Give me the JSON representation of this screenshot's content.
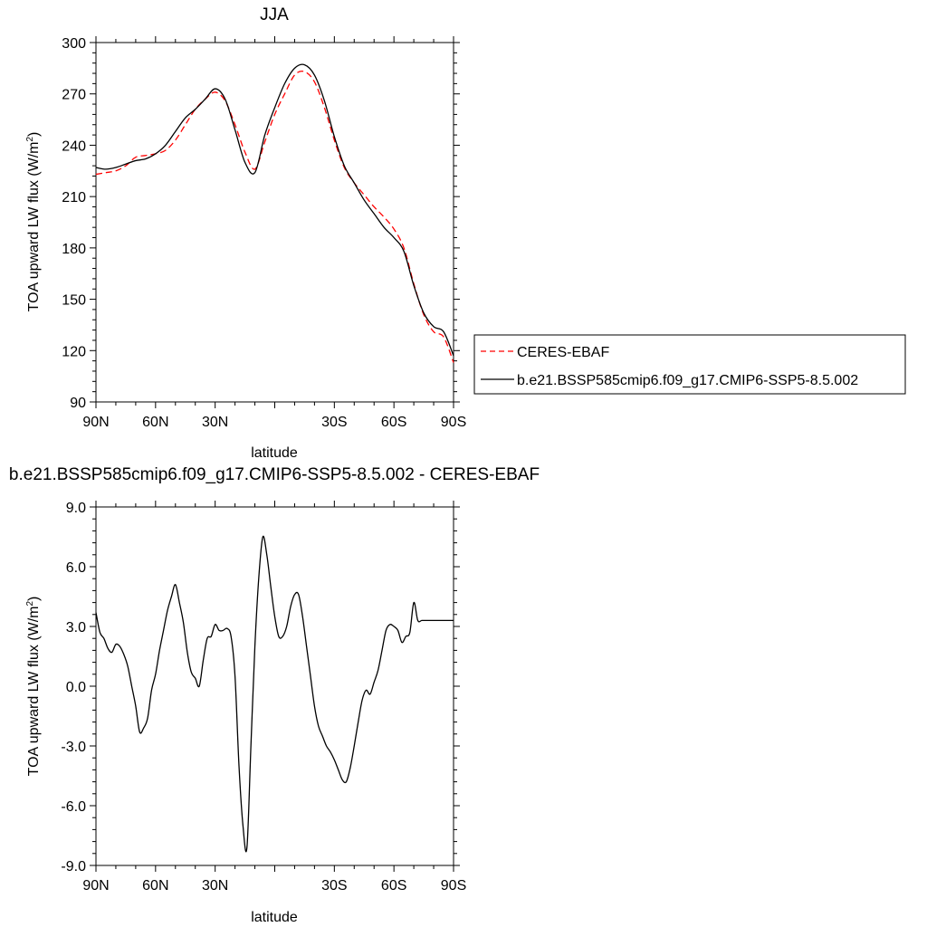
{
  "chart_data": [
    {
      "type": "line",
      "title": "JJA",
      "xlabel": "latitude",
      "ylabel": "TOA upward LW flux (W/m",
      "ylabel_sup": "2",
      "ylabel_close": ")",
      "xlim": [
        90,
        -90
      ],
      "ylim": [
        90,
        300
      ],
      "xticks": [
        90,
        60,
        30,
        0,
        -30,
        -60,
        -90
      ],
      "xtick_labels": [
        "90N",
        "60N",
        "30N",
        "",
        "30S",
        "60S",
        "90S"
      ],
      "yticks": [
        90,
        120,
        150,
        180,
        210,
        240,
        270,
        300
      ],
      "ytick_labels": [
        "90",
        "120",
        "150",
        "180",
        "210",
        "240",
        "270",
        "300"
      ],
      "legend_position": "right",
      "series": [
        {
          "name": "CERES-EBAF",
          "color": "#ff0000",
          "style": "dashed",
          "x": [
            90,
            85,
            80,
            75,
            70,
            65,
            60,
            55,
            50,
            45,
            40,
            35,
            30,
            25,
            20,
            15,
            10,
            5,
            0,
            -5,
            -10,
            -15,
            -20,
            -25,
            -30,
            -35,
            -40,
            -45,
            -50,
            -55,
            -60,
            -65,
            -70,
            -75,
            -80,
            -85,
            -90
          ],
          "y": [
            223,
            224,
            225,
            228,
            233,
            234,
            235,
            237,
            243,
            252,
            261,
            267,
            271,
            266,
            252,
            236,
            226,
            242,
            258,
            270,
            281,
            283,
            277,
            262,
            243,
            227,
            218,
            211,
            204,
            198,
            191,
            180,
            159,
            141,
            131,
            128,
            113
          ]
        },
        {
          "name": "b.e21.BSSP585cmip6.f09_g17.CMIP6-SSP5-8.5.002",
          "color": "#000000",
          "style": "solid",
          "x": [
            90,
            85,
            80,
            75,
            70,
            65,
            60,
            55,
            50,
            45,
            40,
            35,
            30,
            25,
            20,
            15,
            10,
            5,
            0,
            -5,
            -10,
            -15,
            -20,
            -25,
            -30,
            -35,
            -40,
            -45,
            -50,
            -55,
            -60,
            -65,
            -70,
            -75,
            -80,
            -85,
            -90
          ],
          "y": [
            227,
            226,
            227,
            229,
            231,
            232,
            235,
            240,
            248,
            256,
            261,
            267,
            273,
            267,
            249,
            230,
            224,
            246,
            262,
            276,
            285,
            287,
            281,
            266,
            245,
            228,
            218,
            208,
            200,
            192,
            186,
            178,
            158,
            142,
            134,
            131,
            117
          ]
        }
      ]
    },
    {
      "type": "line",
      "title": "b.e21.BSSP585cmip6.f09_g17.CMIP6-SSP5-8.5.002 - CERES-EBAF",
      "xlabel": "latitude",
      "ylabel": "TOA upward LW flux (W/m",
      "ylabel_sup": "2",
      "ylabel_close": ")",
      "xlim": [
        90,
        -90
      ],
      "ylim": [
        -9,
        9
      ],
      "xticks": [
        90,
        60,
        30,
        0,
        -30,
        -60,
        -90
      ],
      "xtick_labels": [
        "90N",
        "60N",
        "30N",
        "",
        "30S",
        "60S",
        "90S"
      ],
      "yticks": [
        -9,
        -6,
        -3,
        0,
        3,
        6,
        9
      ],
      "ytick_labels": [
        "-9.0",
        "-6.0",
        "-3.0",
        "0.0",
        "3.0",
        "6.0",
        "9.0"
      ],
      "series": [
        {
          "name": "",
          "color": "#000000",
          "style": "solid",
          "x": [
            90,
            88,
            86,
            84,
            82,
            80,
            78,
            76,
            74,
            72,
            70,
            68,
            66,
            64,
            62,
            60,
            58,
            56,
            54,
            52,
            50,
            48,
            46,
            44,
            42,
            40,
            38,
            36,
            34,
            32,
            30,
            28,
            26,
            24,
            22,
            20,
            18,
            16,
            14,
            12,
            10,
            8,
            6,
            4,
            2,
            0,
            -2,
            -4,
            -6,
            -8,
            -10,
            -12,
            -14,
            -16,
            -18,
            -20,
            -22,
            -24,
            -26,
            -28,
            -30,
            -32,
            -34,
            -36,
            -38,
            -40,
            -42,
            -44,
            -46,
            -48,
            -50,
            -52,
            -54,
            -56,
            -58,
            -60,
            -62,
            -64,
            -66,
            -68,
            -70,
            -72,
            -74,
            -76,
            -78,
            -80,
            -82,
            -84,
            -86,
            -88,
            -90
          ],
          "y": [
            3.7,
            2.7,
            2.4,
            1.9,
            1.7,
            2.1,
            2.0,
            1.6,
            1.0,
            0.0,
            -1.0,
            -2.3,
            -2.1,
            -1.6,
            -0.2,
            0.6,
            1.8,
            2.8,
            3.8,
            4.5,
            5.1,
            4.2,
            3.2,
            1.7,
            0.7,
            0.4,
            0.0,
            1.3,
            2.4,
            2.5,
            3.1,
            2.8,
            2.8,
            2.9,
            2.5,
            0.5,
            -4.0,
            -7.0,
            -8.1,
            -3.0,
            2.0,
            5.5,
            7.5,
            6.6,
            5.0,
            3.5,
            2.5,
            2.5,
            3.0,
            4.0,
            4.6,
            4.6,
            3.5,
            2.0,
            0.5,
            -1.0,
            -2.0,
            -2.5,
            -3.0,
            -3.3,
            -3.7,
            -4.2,
            -4.7,
            -4.8,
            -4.1,
            -3.0,
            -1.8,
            -0.7,
            -0.2,
            -0.4,
            0.2,
            0.8,
            1.8,
            2.8,
            3.1,
            3.0,
            2.8,
            2.2,
            2.5,
            2.7,
            4.2,
            3.3,
            3.3,
            3.3,
            3.3,
            3.3,
            3.3,
            3.3,
            3.3,
            3.3,
            3.3
          ]
        }
      ]
    }
  ]
}
